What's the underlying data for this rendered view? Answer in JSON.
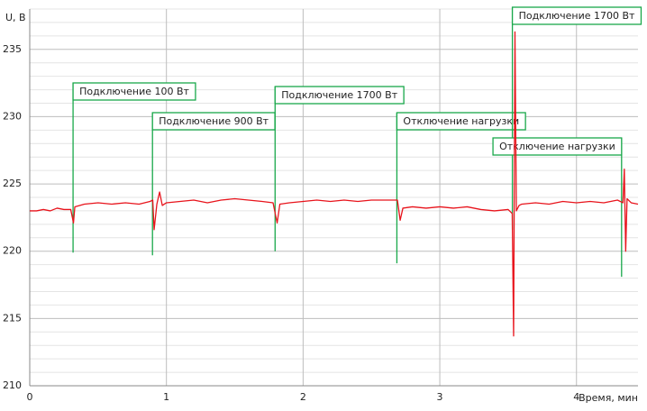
{
  "chart_data": {
    "type": "line",
    "ylabel": "U, В",
    "xlabel": "Время, мин",
    "x": [
      0,
      0.05,
      0.1,
      0.15,
      0.2,
      0.25,
      0.3,
      0.32,
      0.33,
      0.4,
      0.5,
      0.6,
      0.7,
      0.8,
      0.88,
      0.9,
      0.91,
      0.93,
      0.95,
      0.97,
      1.0,
      1.1,
      1.2,
      1.3,
      1.4,
      1.5,
      1.6,
      1.7,
      1.78,
      1.81,
      1.83,
      1.9,
      2.0,
      2.1,
      2.2,
      2.3,
      2.4,
      2.5,
      2.6,
      2.69,
      2.71,
      2.73,
      2.8,
      2.9,
      3.0,
      3.1,
      3.2,
      3.3,
      3.4,
      3.5,
      3.53,
      3.54,
      3.55,
      3.56,
      3.58,
      3.6,
      3.7,
      3.8,
      3.9,
      4.0,
      4.1,
      4.2,
      4.3,
      4.34,
      4.35,
      4.36,
      4.37,
      4.4,
      4.45
    ],
    "values": [
      223.0,
      223.0,
      223.1,
      223.0,
      223.2,
      223.1,
      223.1,
      222.1,
      223.3,
      223.5,
      223.6,
      223.5,
      223.6,
      223.5,
      223.7,
      223.8,
      221.6,
      223.5,
      224.4,
      223.4,
      223.6,
      223.7,
      223.8,
      223.6,
      223.8,
      223.9,
      223.8,
      223.7,
      223.6,
      222.1,
      223.5,
      223.6,
      223.7,
      223.8,
      223.7,
      223.8,
      223.7,
      223.8,
      223.8,
      223.8,
      222.3,
      223.2,
      223.3,
      223.2,
      223.3,
      223.2,
      223.3,
      223.1,
      223.0,
      223.1,
      222.8,
      213.7,
      236.3,
      223.0,
      223.4,
      223.5,
      223.6,
      223.5,
      223.7,
      223.6,
      223.7,
      223.6,
      223.8,
      223.6,
      226.1,
      220.0,
      223.9,
      223.6,
      223.5
    ],
    "color": "#e8141c",
    "xlim": [
      0,
      4.45
    ],
    "ylim": [
      210,
      238
    ],
    "xticks": [
      0,
      1,
      2,
      3,
      4
    ],
    "yticks": [
      210,
      215,
      220,
      225,
      230,
      235
    ],
    "yminorticks": [
      211,
      212,
      213,
      214,
      216,
      217,
      218,
      219,
      221,
      222,
      223,
      224,
      226,
      227,
      228,
      229,
      231,
      232,
      233,
      234,
      236,
      237,
      238
    ],
    "grid": true,
    "annotation_color": "#19a84a",
    "annotations": [
      {
        "text": "Подключение 100 Вт",
        "x": 0.317,
        "y": 219.9
      },
      {
        "text": "Подключение 900 Вт",
        "x": 0.898,
        "y": 219.7
      },
      {
        "text": "Подключение 1700 Вт",
        "x": 1.795,
        "y": 220.0
      },
      {
        "text": "Отключение нагрузки",
        "x": 2.686,
        "y": 219.1
      },
      {
        "text": "Подключение 1700 Вт",
        "x": 3.531,
        "y": 221.6
      },
      {
        "text": "Отключение нагрузки",
        "x": 4.33,
        "y": 218.1
      }
    ]
  }
}
